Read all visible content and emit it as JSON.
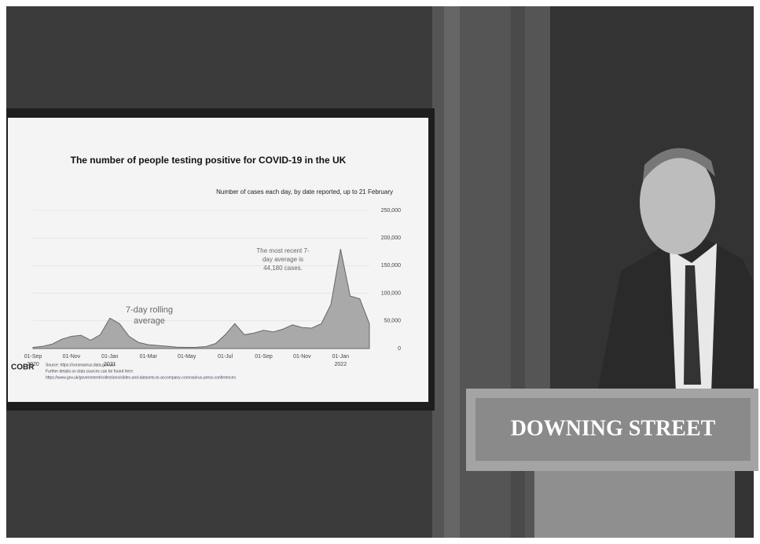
{
  "chart_data": {
    "type": "area",
    "title": "The number of people testing positive for COVID-19 in the UK",
    "subtitle": "Number of cases each day, by date reported, up to 21 February",
    "categories": [
      "01-Sep",
      null,
      null,
      null,
      "01-Nov",
      null,
      null,
      null,
      "01-Jan",
      null,
      null,
      null,
      "01-Mar",
      null,
      null,
      null,
      "01-May",
      null,
      null,
      null,
      "01-Jul",
      null,
      null,
      null,
      "01-Sep",
      null,
      null,
      null,
      "01-Nov",
      null,
      null,
      null,
      "01-Jan",
      null,
      null,
      null
    ],
    "years": [
      "2020",
      null,
      null,
      null,
      null,
      null,
      null,
      null,
      "2021",
      null,
      null,
      null,
      null,
      null,
      null,
      null,
      null,
      null,
      null,
      null,
      null,
      null,
      null,
      null,
      null,
      null,
      null,
      null,
      null,
      null,
      null,
      null,
      "2022",
      null,
      null,
      null
    ],
    "values": [
      2000,
      4000,
      8000,
      17000,
      22000,
      24000,
      15000,
      25000,
      55000,
      45000,
      22000,
      11000,
      7000,
      5500,
      4000,
      2500,
      2200,
      2300,
      3500,
      9000,
      25000,
      45000,
      25000,
      28000,
      33000,
      30000,
      35000,
      43000,
      38000,
      37000,
      45000,
      80000,
      180000,
      95000,
      90000,
      45000
    ],
    "color": "#a9a9a9",
    "ylim": [
      0,
      250000
    ],
    "yticks": [
      0,
      {
        "value": 50000,
        "label": "50,000"
      },
      {
        "value": 100000,
        "label": "100,000"
      },
      {
        "value": 150000,
        "label": "150,000"
      },
      {
        "value": 200000,
        "label": "200,000"
      },
      {
        "value": 250000,
        "label": "250,000"
      }
    ],
    "grid": true,
    "annotations": [
      {
        "lines": [
          "7-day rolling",
          "average"
        ]
      },
      {
        "lines": [
          "The most recent 7-",
          "day average is",
          "44,180 cases."
        ]
      }
    ]
  },
  "screen": {
    "logo": "COBR",
    "source": "Source: https://coronavirus.data.gov.uk/",
    "details": "Further details on data sources can be found here:",
    "link": "https://www.gov.uk/government/collections/slides-and-datasets-to-accompany-coronavirus-press-conferences"
  },
  "podium": {
    "sign": "DOWNING STREET"
  }
}
